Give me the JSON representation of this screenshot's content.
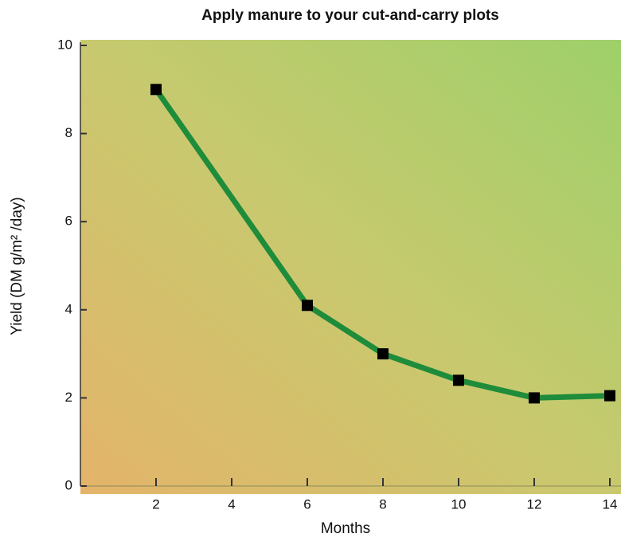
{
  "chart_data": {
    "type": "line",
    "title": "Apply manure to your cut-and-carry plots",
    "x_label": "Months",
    "y_label": "Yield (DM g/m² /day)",
    "x": [
      2,
      6,
      8,
      10,
      12,
      14
    ],
    "series": [
      {
        "name": "Yield",
        "color": "#1e8c3a",
        "values": [
          9.0,
          4.1,
          3.0,
          2.4,
          2.0,
          2.05
        ]
      }
    ],
    "marker_color": "#000000",
    "xlim": [
      0,
      14
    ],
    "xticks": [
      2,
      4,
      6,
      8,
      10,
      12,
      14
    ],
    "ylim": [
      0,
      10
    ],
    "yticks": [
      0,
      2,
      4,
      6,
      8,
      10
    ],
    "grid": false
  }
}
